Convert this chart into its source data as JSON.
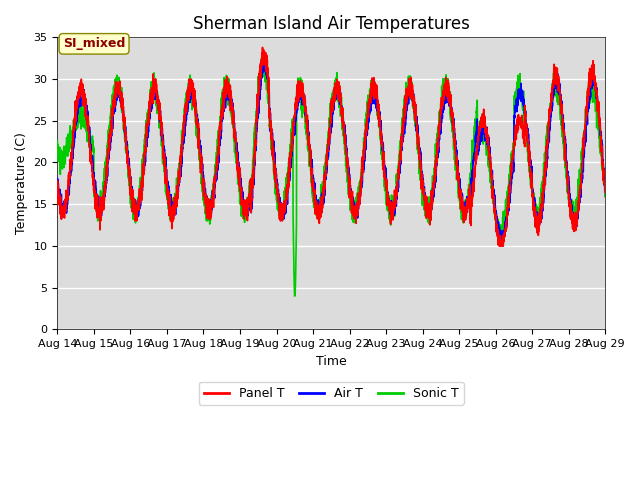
{
  "title": "Sherman Island Air Temperatures",
  "xlabel": "Time",
  "ylabel": "Temperature (C)",
  "ylim": [
    0,
    35
  ],
  "yticks": [
    0,
    5,
    10,
    15,
    20,
    25,
    30,
    35
  ],
  "n_days": 15,
  "x_labels": [
    "Aug 14",
    "Aug 15",
    "Aug 16",
    "Aug 17",
    "Aug 18",
    "Aug 19",
    "Aug 20",
    "Aug 21",
    "Aug 22",
    "Aug 23",
    "Aug 24",
    "Aug 25",
    "Aug 26",
    "Aug 27",
    "Aug 28",
    "Aug 29"
  ],
  "annotation_text": "SI_mixed",
  "annotation_color": "#8B0000",
  "annotation_bg": "#FFFFCC",
  "panel_color": "#FF0000",
  "air_color": "#0000FF",
  "sonic_color": "#00CC00",
  "legend_labels": [
    "Panel T",
    "Air T",
    "Sonic T"
  ],
  "bg_color": "#DCDCDC",
  "grid_color": "white",
  "title_fontsize": 12,
  "axis_label_fontsize": 9,
  "tick_fontsize": 8,
  "linewidth": 1.2
}
